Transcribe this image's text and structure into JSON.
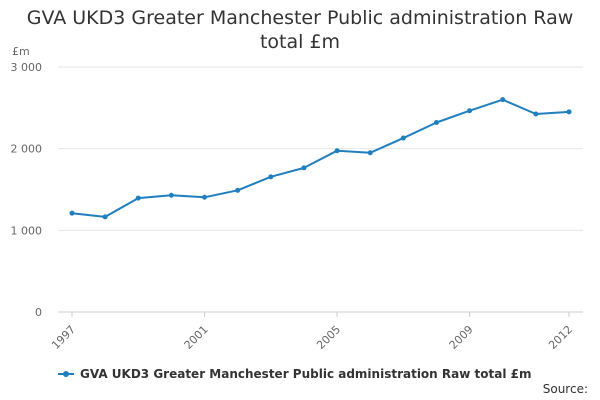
{
  "chart_data": {
    "type": "line",
    "title": "GVA UKD3 Greater Manchester Public administration Raw total £m",
    "ylabel": "£m",
    "xlabel": "",
    "x": [
      1997,
      1998,
      1999,
      2000,
      2001,
      2002,
      2003,
      2004,
      2005,
      2006,
      2007,
      2008,
      2009,
      2010,
      2011,
      2012
    ],
    "x_tick_labels": [
      "1997",
      "2001",
      "2005",
      "2009",
      "2012"
    ],
    "x_tick_values": [
      1997,
      2001,
      2005,
      2009,
      2012
    ],
    "y_tick_labels": [
      "0",
      "1 000",
      "2 000",
      "3 000"
    ],
    "y_tick_values": [
      0,
      1000,
      2000,
      3000
    ],
    "ylim": [
      0,
      3000
    ],
    "grid": true,
    "series": [
      {
        "name": "GVA UKD3 Greater Manchester Public administration Raw total £m",
        "color": "#1f7fbf",
        "values": [
          1210,
          1165,
          1395,
          1430,
          1405,
          1490,
          1655,
          1765,
          1975,
          1950,
          2130,
          2320,
          2465,
          2600,
          2425,
          2450
        ]
      }
    ],
    "legend": "bottom-left",
    "source_label": "Source:"
  }
}
